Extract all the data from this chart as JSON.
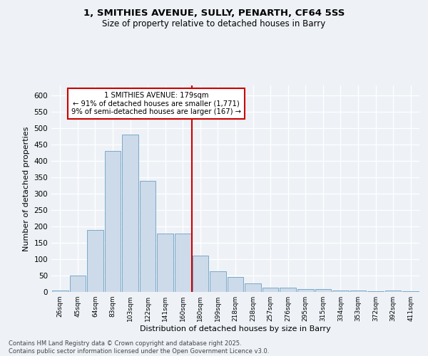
{
  "title": "1, SMITHIES AVENUE, SULLY, PENARTH, CF64 5SS",
  "subtitle": "Size of property relative to detached houses in Barry",
  "xlabel": "Distribution of detached houses by size in Barry",
  "ylabel": "Number of detached properties",
  "categories": [
    "26sqm",
    "45sqm",
    "64sqm",
    "83sqm",
    "103sqm",
    "122sqm",
    "141sqm",
    "160sqm",
    "180sqm",
    "199sqm",
    "218sqm",
    "238sqm",
    "257sqm",
    "276sqm",
    "295sqm",
    "315sqm",
    "334sqm",
    "353sqm",
    "372sqm",
    "392sqm",
    "411sqm"
  ],
  "values": [
    5,
    50,
    190,
    430,
    480,
    338,
    178,
    178,
    110,
    62,
    45,
    25,
    12,
    12,
    9,
    8,
    5,
    5,
    3,
    5,
    3
  ],
  "bar_color": "#ccdaea",
  "bar_edge_color": "#7aaac8",
  "annotation_line1": "1 SMITHIES AVENUE: 179sqm",
  "annotation_line2": "← 91% of detached houses are smaller (1,771)",
  "annotation_line3": "9% of semi-detached houses are larger (167) →",
  "annotation_box_color": "#ffffff",
  "annotation_box_edge": "#cc0000",
  "vline_color": "#cc0000",
  "ylim": [
    0,
    630
  ],
  "yticks": [
    0,
    50,
    100,
    150,
    200,
    250,
    300,
    350,
    400,
    450,
    500,
    550,
    600
  ],
  "footer_line1": "Contains HM Land Registry data © Crown copyright and database right 2025.",
  "footer_line2": "Contains public sector information licensed under the Open Government Licence v3.0.",
  "background_color": "#eef2f7",
  "grid_color": "#ffffff",
  "title_fontsize": 9.5,
  "subtitle_fontsize": 8.5
}
